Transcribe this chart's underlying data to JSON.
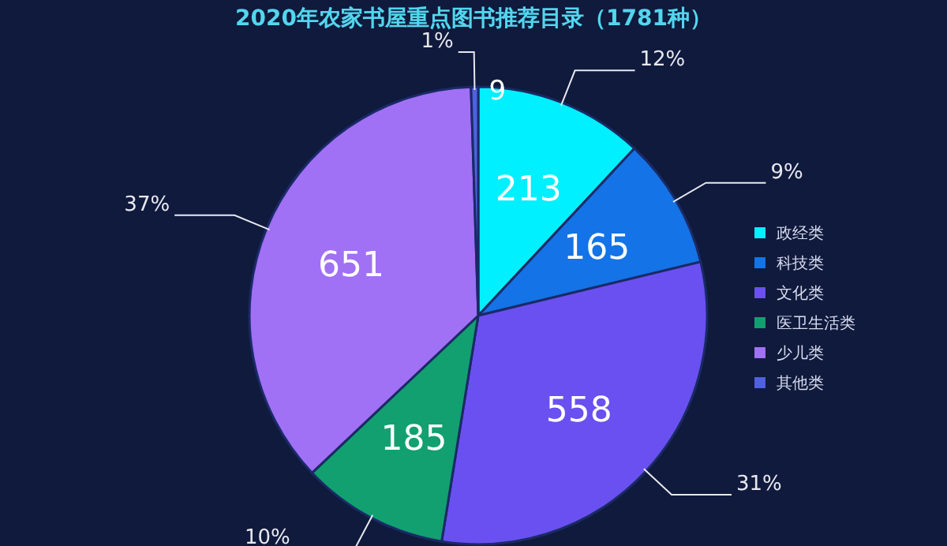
{
  "chart_data": {
    "type": "pie",
    "title": "2020年农家书屋重点图书推荐目录（1781种）",
    "categories": [
      "政经类",
      "科技类",
      "文化类",
      "医卫生活类",
      "少儿类",
      "其他类"
    ],
    "values": [
      213,
      165,
      558,
      185,
      651,
      9
    ],
    "colors": [
      "#00f0ff",
      "#1473e6",
      "#6a50f0",
      "#12a070",
      "#a070f5",
      "#5060e0"
    ],
    "data_labels": true,
    "annotations": [
      {
        "text": "12%",
        "x": "政经类"
      },
      {
        "text": "9%",
        "x": "科技类"
      },
      {
        "text": "31%",
        "x": "文化类"
      },
      {
        "text": "10%",
        "x": "医卫生活类"
      },
      {
        "text": "37%",
        "x": "少儿类"
      },
      {
        "text": "1%",
        "x": "其他类"
      }
    ],
    "legend": "right"
  }
}
